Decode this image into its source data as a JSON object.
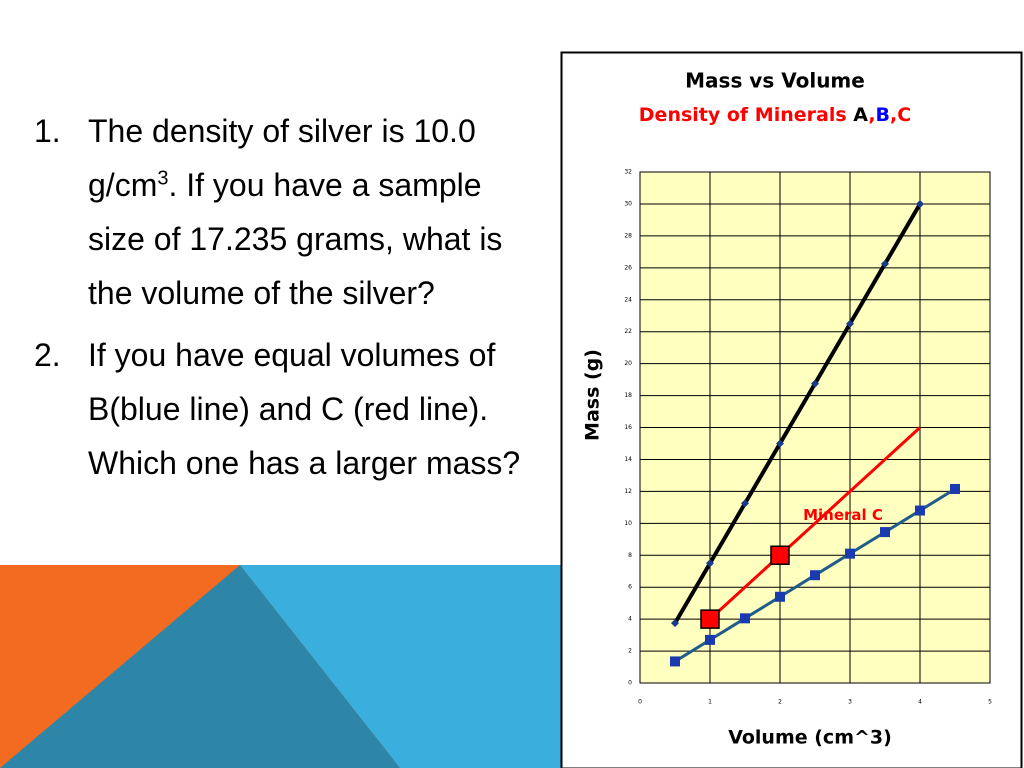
{
  "slide": {
    "items": [
      {
        "number": "1.",
        "text_before": "The density of silver is 10.0 g/cm",
        "superscript": "3",
        "text_after": ".  If you have a sample size of 17.235 grams, what is the volume of the silver?"
      },
      {
        "number": "2.",
        "text_before": "If you have equal volumes of B(blue line) and C (red line).  Which one has a larger mass?"
      }
    ]
  },
  "chart_data": {
    "type": "line",
    "title": "Mass vs Volume",
    "subtitle_parts": [
      {
        "text": "Density of Minerals ",
        "color": "#ff0000"
      },
      {
        "text": "A",
        "color": "#000000"
      },
      {
        "text": ",",
        "color": "#ff0000"
      },
      {
        "text": "B",
        "color": "#0000ff"
      },
      {
        "text": ",",
        "color": "#ff0000"
      },
      {
        "text": "C",
        "color": "#ff0000"
      }
    ],
    "x_label": "Volume (cm^3)",
    "y_label": "Mass (g)",
    "xlim": [
      0,
      5
    ],
    "xticks": [
      0,
      1,
      2,
      3,
      4,
      5
    ],
    "ylim": [
      0,
      32
    ],
    "yticks": [
      0,
      2,
      4,
      6,
      8,
      10,
      12,
      14,
      16,
      18,
      20,
      22,
      24,
      26,
      28,
      30,
      32
    ],
    "grid": true,
    "plot_background": "#ffffc0",
    "series": [
      {
        "color": "#000000",
        "marker_color": "#1a3a8a",
        "marker": "diamond",
        "x": [
          0.5,
          1,
          1.5,
          2,
          2.5,
          3,
          3.5,
          4
        ],
        "values": [
          3.75,
          7.5,
          11.25,
          15,
          18.75,
          22.5,
          26.25,
          30
        ]
      },
      {
        "color": "#ff0000",
        "marker_color": "#ff0000",
        "marker": "big-square",
        "x": [
          1,
          2,
          4
        ],
        "values": [
          4,
          8,
          16
        ],
        "markers": [
          true,
          true,
          false
        ]
      },
      {
        "color": "#1f5c8a",
        "marker_color": "#1a3ab0",
        "marker": "square",
        "x": [
          0.5,
          1,
          1.5,
          2,
          2.5,
          3,
          3.5,
          4,
          4.5
        ],
        "values": [
          1.35,
          2.7,
          4.05,
          5.4,
          6.75,
          8.1,
          9.45,
          10.8,
          12.15
        ]
      }
    ],
    "annotation": {
      "text": "Mineral C",
      "color": "#ff0000",
      "x": 2.9,
      "y": 10.5
    }
  }
}
